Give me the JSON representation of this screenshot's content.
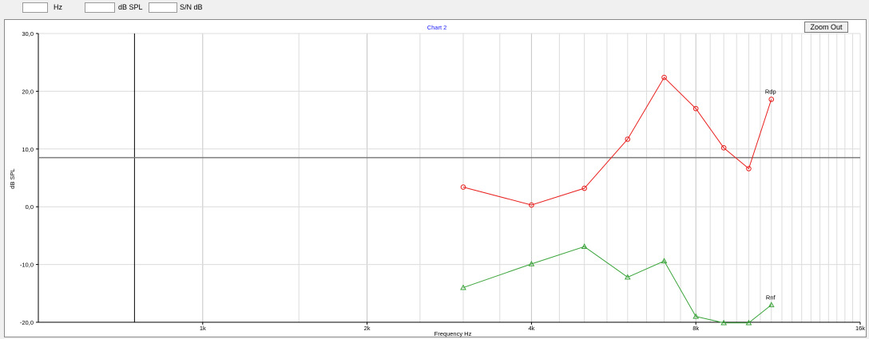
{
  "toolbar": {
    "hz_value": "",
    "hz_label": "Hz",
    "dbspl_value": "",
    "dbspl_label": "dB SPL",
    "sn_value": "",
    "sn_label": "S/N dB"
  },
  "zoom_out_label": "Zoom Out",
  "chart_data": {
    "type": "line",
    "title": "Chart 2",
    "xlabel": "Frequency Hz",
    "ylabel": "dB SPL",
    "x_scale": "log2",
    "xlim": [
      500,
      16000
    ],
    "ylim": [
      -20,
      30
    ],
    "x_ticks": [
      {
        "value": 1000,
        "label": "1k"
      },
      {
        "value": 2000,
        "label": "2k"
      },
      {
        "value": 4000,
        "label": "4k"
      },
      {
        "value": 8000,
        "label": "8k"
      },
      {
        "value": 16000,
        "label": "16k"
      }
    ],
    "y_ticks": [
      {
        "value": 30,
        "label": "30,0"
      },
      {
        "value": 20,
        "label": "20,0"
      },
      {
        "value": 10,
        "label": "10,0"
      },
      {
        "value": 0,
        "label": "0,0"
      },
      {
        "value": -10,
        "label": "-10,0"
      },
      {
        "value": -20,
        "label": "-20,0"
      }
    ],
    "grid": true,
    "cursor_frequency": 750,
    "reference_level": 8.5,
    "series": [
      {
        "name": "Rdp",
        "color": "#e8201e",
        "marker": "circle",
        "x": [
          3000,
          4000,
          5000,
          6000,
          7000,
          8000,
          9000,
          10000,
          11000
        ],
        "y": [
          3.4,
          0.3,
          3.2,
          11.7,
          22.4,
          17.0,
          10.2,
          6.6,
          18.6
        ]
      },
      {
        "name": "Rnf",
        "color": "#3aa43a",
        "marker": "triangle",
        "x": [
          3000,
          4000,
          5000,
          6000,
          7000,
          8000,
          9000,
          10000,
          11000
        ],
        "y": [
          -14.0,
          -9.9,
          -6.9,
          -12.2,
          -9.4,
          -19.0,
          -20.1,
          -20.1,
          -17.0
        ]
      }
    ]
  }
}
